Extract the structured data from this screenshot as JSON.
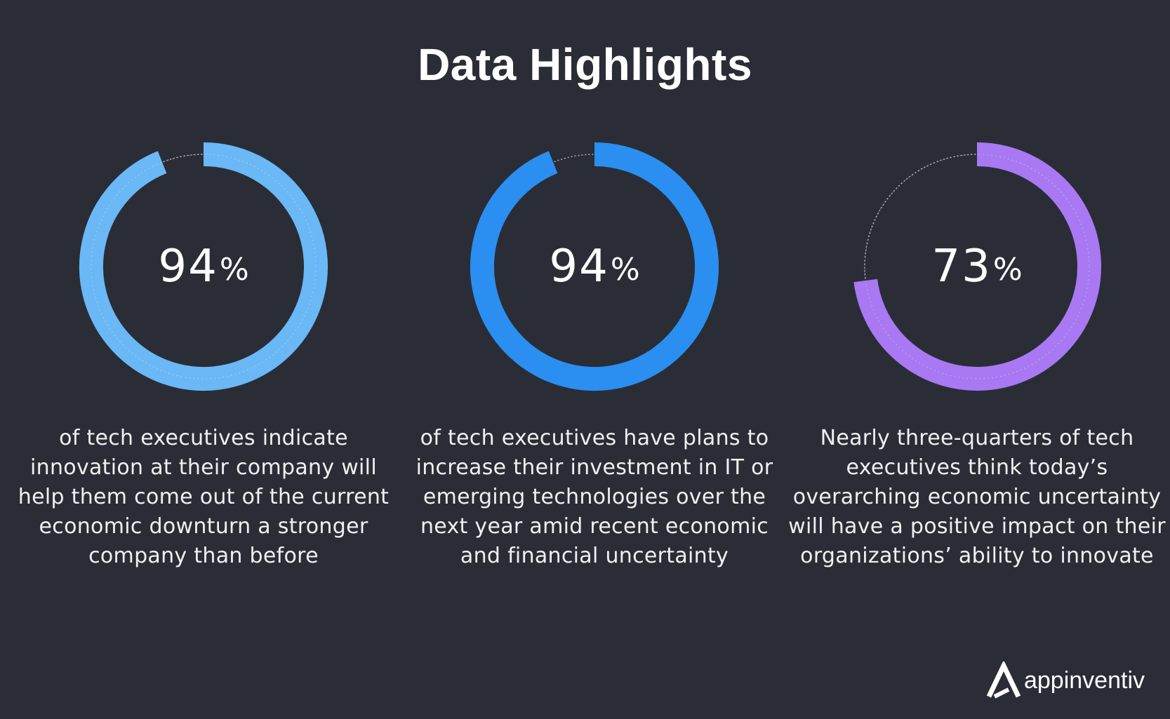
{
  "title": "Data Highlights",
  "chart_data": [
    {
      "type": "pie",
      "value": 94,
      "percent_symbol": "%",
      "number": "94",
      "color": "#6ab8f5",
      "description": "of tech executives indicate innovation at their company will help them come out of the current economic downturn a stronger company than before"
    },
    {
      "type": "pie",
      "value": 94,
      "percent_symbol": "%",
      "number": "94",
      "color": "#2a8ff0",
      "description": "of tech executives have plans to increase their investment in IT or emerging technologies over the next year amid recent economic and financial uncertainty"
    },
    {
      "type": "pie",
      "value": 73,
      "percent_symbol": "%",
      "number": "73",
      "color": "#a879f2",
      "description": "Nearly three-quarters of tech executives think today’s overarching economic uncertainty will have a positive impact on their organizations’ ability to innovate"
    }
  ],
  "logo": {
    "text": "appinventiv",
    "icon": "appinventiv-logo-icon"
  }
}
